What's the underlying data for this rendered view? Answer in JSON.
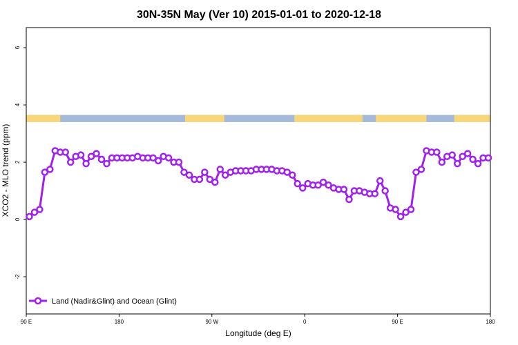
{
  "chart_data": {
    "type": "line",
    "title": "30N-35N May (Ver 10)   2015-01-01 to 2020-12-18",
    "xlabel": "Longitude (deg E)",
    "ylabel": "XCO2 - MLO trend (ppm)",
    "xlim": [
      90,
      540
    ],
    "ylim": [
      -3.3,
      6.7
    ],
    "x_ticks": [
      {
        "value": 90,
        "label": "90 E"
      },
      {
        "value": 180,
        "label": "180"
      },
      {
        "value": 270,
        "label": "90 W"
      },
      {
        "value": 360,
        "label": "0"
      },
      {
        "value": 450,
        "label": "90 E"
      },
      {
        "value": 540,
        "label": "180"
      }
    ],
    "y_ticks": [
      {
        "value": -2,
        "label": "-2"
      },
      {
        "value": 0,
        "label": "0"
      },
      {
        "value": 2,
        "label": "2"
      },
      {
        "value": 4,
        "label": "4"
      },
      {
        "value": 6,
        "label": "6"
      }
    ],
    "grid": false,
    "legend_position": "bottom-left",
    "surface_band": {
      "y_range": [
        3.4,
        3.65
      ],
      "ocean_color": "#a5b9d9",
      "land_color": "#f7d77a",
      "land_segments": [
        [
          90,
          123
        ],
        [
          244,
          282
        ],
        [
          350,
          416
        ],
        [
          429,
          478
        ],
        [
          505,
          540
        ]
      ]
    },
    "series": [
      {
        "name": "Land (Nadir&Glint) and Ocean (Glint)",
        "color": "#a020f0",
        "x": [
          93,
          98,
          103,
          108,
          113,
          118,
          123,
          128,
          133,
          138,
          143,
          148,
          153,
          158,
          163,
          168,
          173,
          178,
          183,
          188,
          193,
          198,
          203,
          208,
          213,
          218,
          223,
          228,
          233,
          238,
          243,
          248,
          253,
          258,
          263,
          268,
          273,
          278,
          283,
          288,
          293,
          298,
          303,
          308,
          313,
          318,
          323,
          328,
          333,
          338,
          343,
          348,
          353,
          358,
          363,
          368,
          373,
          378,
          383,
          388,
          393,
          398,
          403,
          408,
          413,
          418,
          423,
          428,
          433,
          438,
          443,
          448,
          453,
          458,
          463,
          468,
          473,
          478,
          483,
          488,
          493,
          498,
          503,
          508,
          513,
          518,
          523,
          528,
          533,
          538
        ],
        "y": [
          0.1,
          0.25,
          0.35,
          1.65,
          1.75,
          2.4,
          2.35,
          2.35,
          2.0,
          2.2,
          2.25,
          1.95,
          2.2,
          2.3,
          2.1,
          1.95,
          2.15,
          2.15,
          2.15,
          2.15,
          2.15,
          2.2,
          2.15,
          2.15,
          2.15,
          2.05,
          2.2,
          2.15,
          2.0,
          2.0,
          1.65,
          1.55,
          1.4,
          1.4,
          1.65,
          1.4,
          1.3,
          1.75,
          1.55,
          1.65,
          1.7,
          1.7,
          1.7,
          1.7,
          1.75,
          1.75,
          1.75,
          1.75,
          1.7,
          1.7,
          1.65,
          1.55,
          1.25,
          1.1,
          1.25,
          1.2,
          1.2,
          1.3,
          1.2,
          1.1,
          1.05,
          1.05,
          0.7,
          1.0,
          1.0,
          0.95,
          0.9,
          0.9,
          1.35,
          1.0,
          0.4,
          0.35,
          0.1,
          0.25,
          0.35,
          1.65,
          1.75,
          2.4,
          2.35,
          2.35,
          2.0,
          2.2,
          2.25,
          1.95,
          2.2,
          2.3,
          2.1,
          1.95,
          2.15,
          2.15
        ]
      }
    ]
  }
}
